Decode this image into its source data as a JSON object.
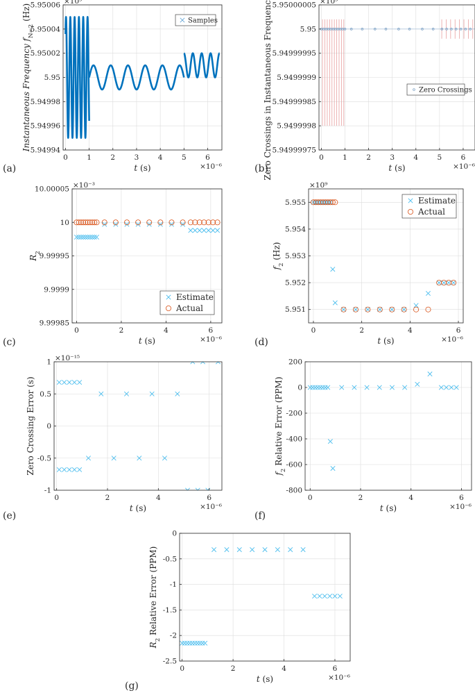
{
  "colors": {
    "blue": "#0072BD",
    "cross": "#4DBEEE",
    "circle": "#D95319",
    "stem": "#E8A0A0",
    "axis": "#262626"
  },
  "chart_data": [
    {
      "id": "a",
      "panel_label": "(a)",
      "type": "line",
      "title": "",
      "xlabel": "t (s)",
      "ylabel": "Instantaneous Frequency f_{N=2} (Hz)",
      "x_exponent": "×10⁻⁶",
      "y_exponent": "×10⁹",
      "xlim": [
        -0.1,
        6.6
      ],
      "ylim": [
        5.94994,
        5.95006
      ],
      "xticks": [
        0,
        1,
        2,
        3,
        4,
        5,
        6
      ],
      "yticks": [
        5.94994,
        5.94996,
        5.94998,
        5.95,
        5.95002,
        5.95004,
        5.95006
      ],
      "yticklabels": [
        "5.94994",
        "5.94996",
        "5.94998",
        "5.95",
        "5.95002",
        "5.95004",
        "5.95006"
      ],
      "legend": {
        "entries": [
          "Samples"
        ],
        "position": "top-right"
      },
      "series": [
        {
          "name": "Samples",
          "segments": [
            {
              "x_start": 0.0,
              "x_end": 1.0,
              "center": 5.95,
              "amplitude": 5e-05,
              "cycles": 5.5,
              "phase": 0.8
            },
            {
              "x_start": 1.0,
              "x_end": 5.0,
              "center": 5.95,
              "amplitude": 1e-05,
              "cycles": 5.5,
              "phase": 0.0
            },
            {
              "x_start": 5.0,
              "x_end": 6.5,
              "center": 5.95001,
              "amplitude": 1e-05,
              "cycles": 4.0,
              "phase": 1.6
            }
          ]
        }
      ]
    },
    {
      "id": "b",
      "panel_label": "(b)",
      "type": "scatter",
      "title": "",
      "xlabel": "t (s)",
      "ylabel": "Zero Crossings in Instantaneous Frequency (Hz)",
      "x_exponent": "×10⁻⁶",
      "y_exponent": "×10⁹",
      "xlim": [
        -0.1,
        6.5
      ],
      "ylim": [
        5.94999975,
        5.95000005
      ],
      "xticks": [
        0,
        1,
        2,
        3,
        4,
        5,
        6
      ],
      "yticks": [
        5.94999975,
        5.9499998,
        5.94999985,
        5.9499999,
        5.94999995,
        5.95,
        5.95000005
      ],
      "yticklabels": [
        "5.94999975",
        "5.9499998",
        "5.94999985",
        "5.9499999",
        "5.94999995",
        "5.95",
        "5.95000005"
      ],
      "legend": {
        "entries": [
          "Zero Crossings"
        ],
        "position": "right"
      },
      "series": [
        {
          "name": "Zero Crossings",
          "x": [
            0.0,
            0.1,
            0.2,
            0.3,
            0.4,
            0.5,
            0.6,
            0.7,
            0.8,
            0.9,
            1.0,
            1.27,
            1.73,
            2.27,
            2.73,
            3.27,
            3.73,
            4.27,
            4.73,
            5.1,
            5.3,
            5.5,
            5.7,
            5.9,
            6.1,
            6.3
          ],
          "y": 5.95
        }
      ],
      "stems": [
        {
          "x_start": 0.0,
          "x_end": 1.0,
          "count": 10,
          "ymin": 5.9499998,
          "ymax": 5.95000002
        },
        {
          "x_start": 5.0,
          "x_end": 6.5,
          "count": 8,
          "ymin": 5.94999998,
          "ymax": 5.95000002
        }
      ]
    },
    {
      "id": "c",
      "panel_label": "(c)",
      "type": "scatter",
      "title": "",
      "xlabel": "t (s)",
      "ylabel": "R_2",
      "x_exponent": "×10⁻⁶",
      "y_exponent": "×10⁻³",
      "xlim": [
        -0.2,
        6.5
      ],
      "ylim": [
        9.99985,
        10.00005
      ],
      "xticks": [
        0,
        2,
        4,
        6
      ],
      "yticks": [
        9.99985,
        9.9999,
        9.99995,
        10,
        10.00005
      ],
      "yticklabels": [
        "9.99985",
        "9.9999",
        "9.99995",
        "10",
        "10.00005"
      ],
      "legend": {
        "entries": [
          "Estimate",
          "Actual"
        ],
        "position": "bottom-right"
      },
      "series": [
        {
          "name": "Estimate",
          "marker": "x",
          "x": [
            0.0,
            0.1,
            0.2,
            0.3,
            0.4,
            0.5,
            0.6,
            0.7,
            0.8,
            0.9,
            1.25,
            1.75,
            2.25,
            2.75,
            3.25,
            3.75,
            4.25,
            4.75,
            5.1,
            5.3,
            5.5,
            5.7,
            5.9,
            6.1,
            6.3
          ],
          "y": [
            9.999978,
            9.999978,
            9.999978,
            9.999978,
            9.999978,
            9.999978,
            9.999978,
            9.999978,
            9.999978,
            9.999978,
            9.999997,
            9.999997,
            9.999997,
            9.999997,
            9.999997,
            9.999997,
            9.999997,
            9.999997,
            9.999988,
            9.999988,
            9.999988,
            9.999988,
            9.999988,
            9.999988,
            9.999988
          ]
        },
        {
          "name": "Actual",
          "marker": "o",
          "x": [
            0.0,
            0.1,
            0.2,
            0.3,
            0.4,
            0.5,
            0.6,
            0.7,
            0.8,
            0.9,
            1.25,
            1.75,
            2.25,
            2.75,
            3.25,
            3.75,
            4.25,
            4.75,
            5.1,
            5.3,
            5.5,
            5.7,
            5.9,
            6.1,
            6.3
          ],
          "y": [
            10,
            10,
            10,
            10,
            10,
            10,
            10,
            10,
            10,
            10,
            10,
            10,
            10,
            10,
            10,
            10,
            10,
            10,
            10,
            10,
            10,
            10,
            10,
            10,
            10
          ]
        }
      ]
    },
    {
      "id": "d",
      "panel_label": "(d)",
      "type": "scatter",
      "title": "",
      "xlabel": "t (s)",
      "ylabel": "f_2 (Hz)",
      "x_exponent": "×10⁻⁶",
      "y_exponent": "×10⁹",
      "xlim": [
        -0.2,
        6.2
      ],
      "ylim": [
        5.9505,
        5.9555
      ],
      "xticks": [
        0,
        2,
        4,
        6
      ],
      "yticks": [
        5.951,
        5.952,
        5.953,
        5.954,
        5.955
      ],
      "yticklabels": [
        "5.951",
        "5.952",
        "5.953",
        "5.954",
        "5.955"
      ],
      "legend": {
        "entries": [
          "Estimate",
          "Actual"
        ],
        "position": "top-right"
      },
      "series": [
        {
          "name": "Estimate",
          "marker": "x",
          "x": [
            0.0,
            0.1,
            0.2,
            0.3,
            0.4,
            0.5,
            0.6,
            0.7,
            0.8,
            0.9,
            1.25,
            1.75,
            2.25,
            2.75,
            3.25,
            3.75,
            4.25,
            4.75,
            5.2,
            5.4,
            5.6,
            5.8
          ],
          "y": [
            5.955,
            5.955,
            5.955,
            5.955,
            5.955,
            5.955,
            5.955,
            5.955,
            5.9525,
            5.95125,
            5.951,
            5.951,
            5.951,
            5.951,
            5.951,
            5.951,
            5.95115,
            5.9516,
            5.952,
            5.952,
            5.952,
            5.952
          ]
        },
        {
          "name": "Actual",
          "marker": "o",
          "x": [
            0.0,
            0.1,
            0.2,
            0.3,
            0.4,
            0.5,
            0.6,
            0.7,
            0.8,
            0.9,
            1.25,
            1.75,
            2.25,
            2.75,
            3.25,
            3.75,
            4.25,
            4.75,
            5.2,
            5.4,
            5.6,
            5.8
          ],
          "y": [
            5.955,
            5.955,
            5.955,
            5.955,
            5.955,
            5.955,
            5.955,
            5.955,
            5.955,
            5.955,
            5.951,
            5.951,
            5.951,
            5.951,
            5.951,
            5.951,
            5.951,
            5.951,
            5.952,
            5.952,
            5.952,
            5.952
          ]
        }
      ]
    },
    {
      "id": "e",
      "panel_label": "(e)",
      "type": "scatter",
      "title": "",
      "xlabel": "t (s)",
      "ylabel": "Zero Crossing Error (s)",
      "x_exponent": "×10⁻⁶",
      "y_exponent": "×10⁻¹⁵",
      "xlim": [
        -0.1,
        6.5
      ],
      "ylim": [
        -1,
        1
      ],
      "xticks": [
        0,
        2,
        4,
        6
      ],
      "yticks": [
        -1,
        -0.5,
        0,
        0.5,
        1
      ],
      "yticklabels": [
        "-1",
        "-0.5",
        "0",
        "0.5",
        "1"
      ],
      "legend": null,
      "series": [
        {
          "name": "",
          "marker": "x",
          "x": [
            0.1,
            0.3,
            0.5,
            0.7,
            0.9,
            0.1,
            0.3,
            0.5,
            0.7,
            0.9,
            1.25,
            1.75,
            2.25,
            2.75,
            3.25,
            3.75,
            4.25,
            4.75,
            5.15,
            5.35,
            5.55,
            5.75,
            5.95,
            6.35
          ],
          "y": [
            0.68,
            0.68,
            0.68,
            0.68,
            0.68,
            -0.68,
            -0.68,
            -0.68,
            -0.68,
            -0.68,
            -0.5,
            0.5,
            -0.5,
            0.5,
            -0.5,
            0.5,
            -0.5,
            0.5,
            -1,
            1,
            -1,
            1,
            -1,
            1
          ]
        }
      ]
    },
    {
      "id": "f",
      "panel_label": "(f)",
      "type": "scatter",
      "title": "",
      "xlabel": "t (s)",
      "ylabel": "f_2 Relative Error (PPM)",
      "x_exponent": "×10⁻⁶",
      "y_exponent": "",
      "xlim": [
        -0.2,
        6.4
      ],
      "ylim": [
        -800,
        200
      ],
      "xticks": [
        0,
        2,
        4,
        6
      ],
      "yticks": [
        -800,
        -600,
        -400,
        -200,
        0,
        200
      ],
      "yticklabels": [
        "-800",
        "-600",
        "-400",
        "-200",
        "0",
        "200"
      ],
      "legend": null,
      "series": [
        {
          "name": "",
          "marker": "x",
          "x": [
            0.0,
            0.1,
            0.2,
            0.3,
            0.4,
            0.5,
            0.6,
            0.7,
            0.8,
            0.9,
            1.25,
            1.75,
            2.25,
            2.75,
            3.25,
            3.75,
            4.25,
            4.75,
            5.2,
            5.4,
            5.6,
            5.8
          ],
          "y": [
            0,
            0,
            0,
            0,
            0,
            0,
            0,
            0,
            -420,
            -630,
            0,
            0,
            0,
            0,
            0,
            0,
            25,
            105,
            0,
            0,
            0,
            0
          ]
        }
      ]
    },
    {
      "id": "g",
      "panel_label": "(g)",
      "type": "scatter",
      "title": "",
      "xlabel": "t (s)",
      "ylabel": "R_2 Relative Error (PPM)",
      "x_exponent": "×10⁻⁶",
      "y_exponent": "",
      "xlim": [
        -0.1,
        6.6
      ],
      "ylim": [
        -2.5,
        0
      ],
      "xticks": [
        0,
        2,
        4,
        6
      ],
      "yticks": [
        -2.5,
        -2,
        -1.5,
        -1,
        -0.5,
        0
      ],
      "yticklabels": [
        "-2.5",
        "-2",
        "-1.5",
        "-1",
        "-0.5",
        "0"
      ],
      "legend": null,
      "series": [
        {
          "name": "",
          "marker": "x",
          "x": [
            0.0,
            0.1,
            0.2,
            0.3,
            0.4,
            0.5,
            0.6,
            0.7,
            0.8,
            0.9,
            1.25,
            1.75,
            2.25,
            2.75,
            3.25,
            3.75,
            4.25,
            4.75,
            5.2,
            5.4,
            5.6,
            5.8,
            6.0,
            6.2
          ],
          "y": [
            -2.15,
            -2.15,
            -2.15,
            -2.15,
            -2.15,
            -2.15,
            -2.15,
            -2.15,
            -2.15,
            -2.15,
            -0.32,
            -0.32,
            -0.32,
            -0.32,
            -0.32,
            -0.32,
            -0.32,
            -0.32,
            -1.23,
            -1.23,
            -1.23,
            -1.23,
            -1.23,
            -1.23
          ]
        }
      ]
    }
  ]
}
